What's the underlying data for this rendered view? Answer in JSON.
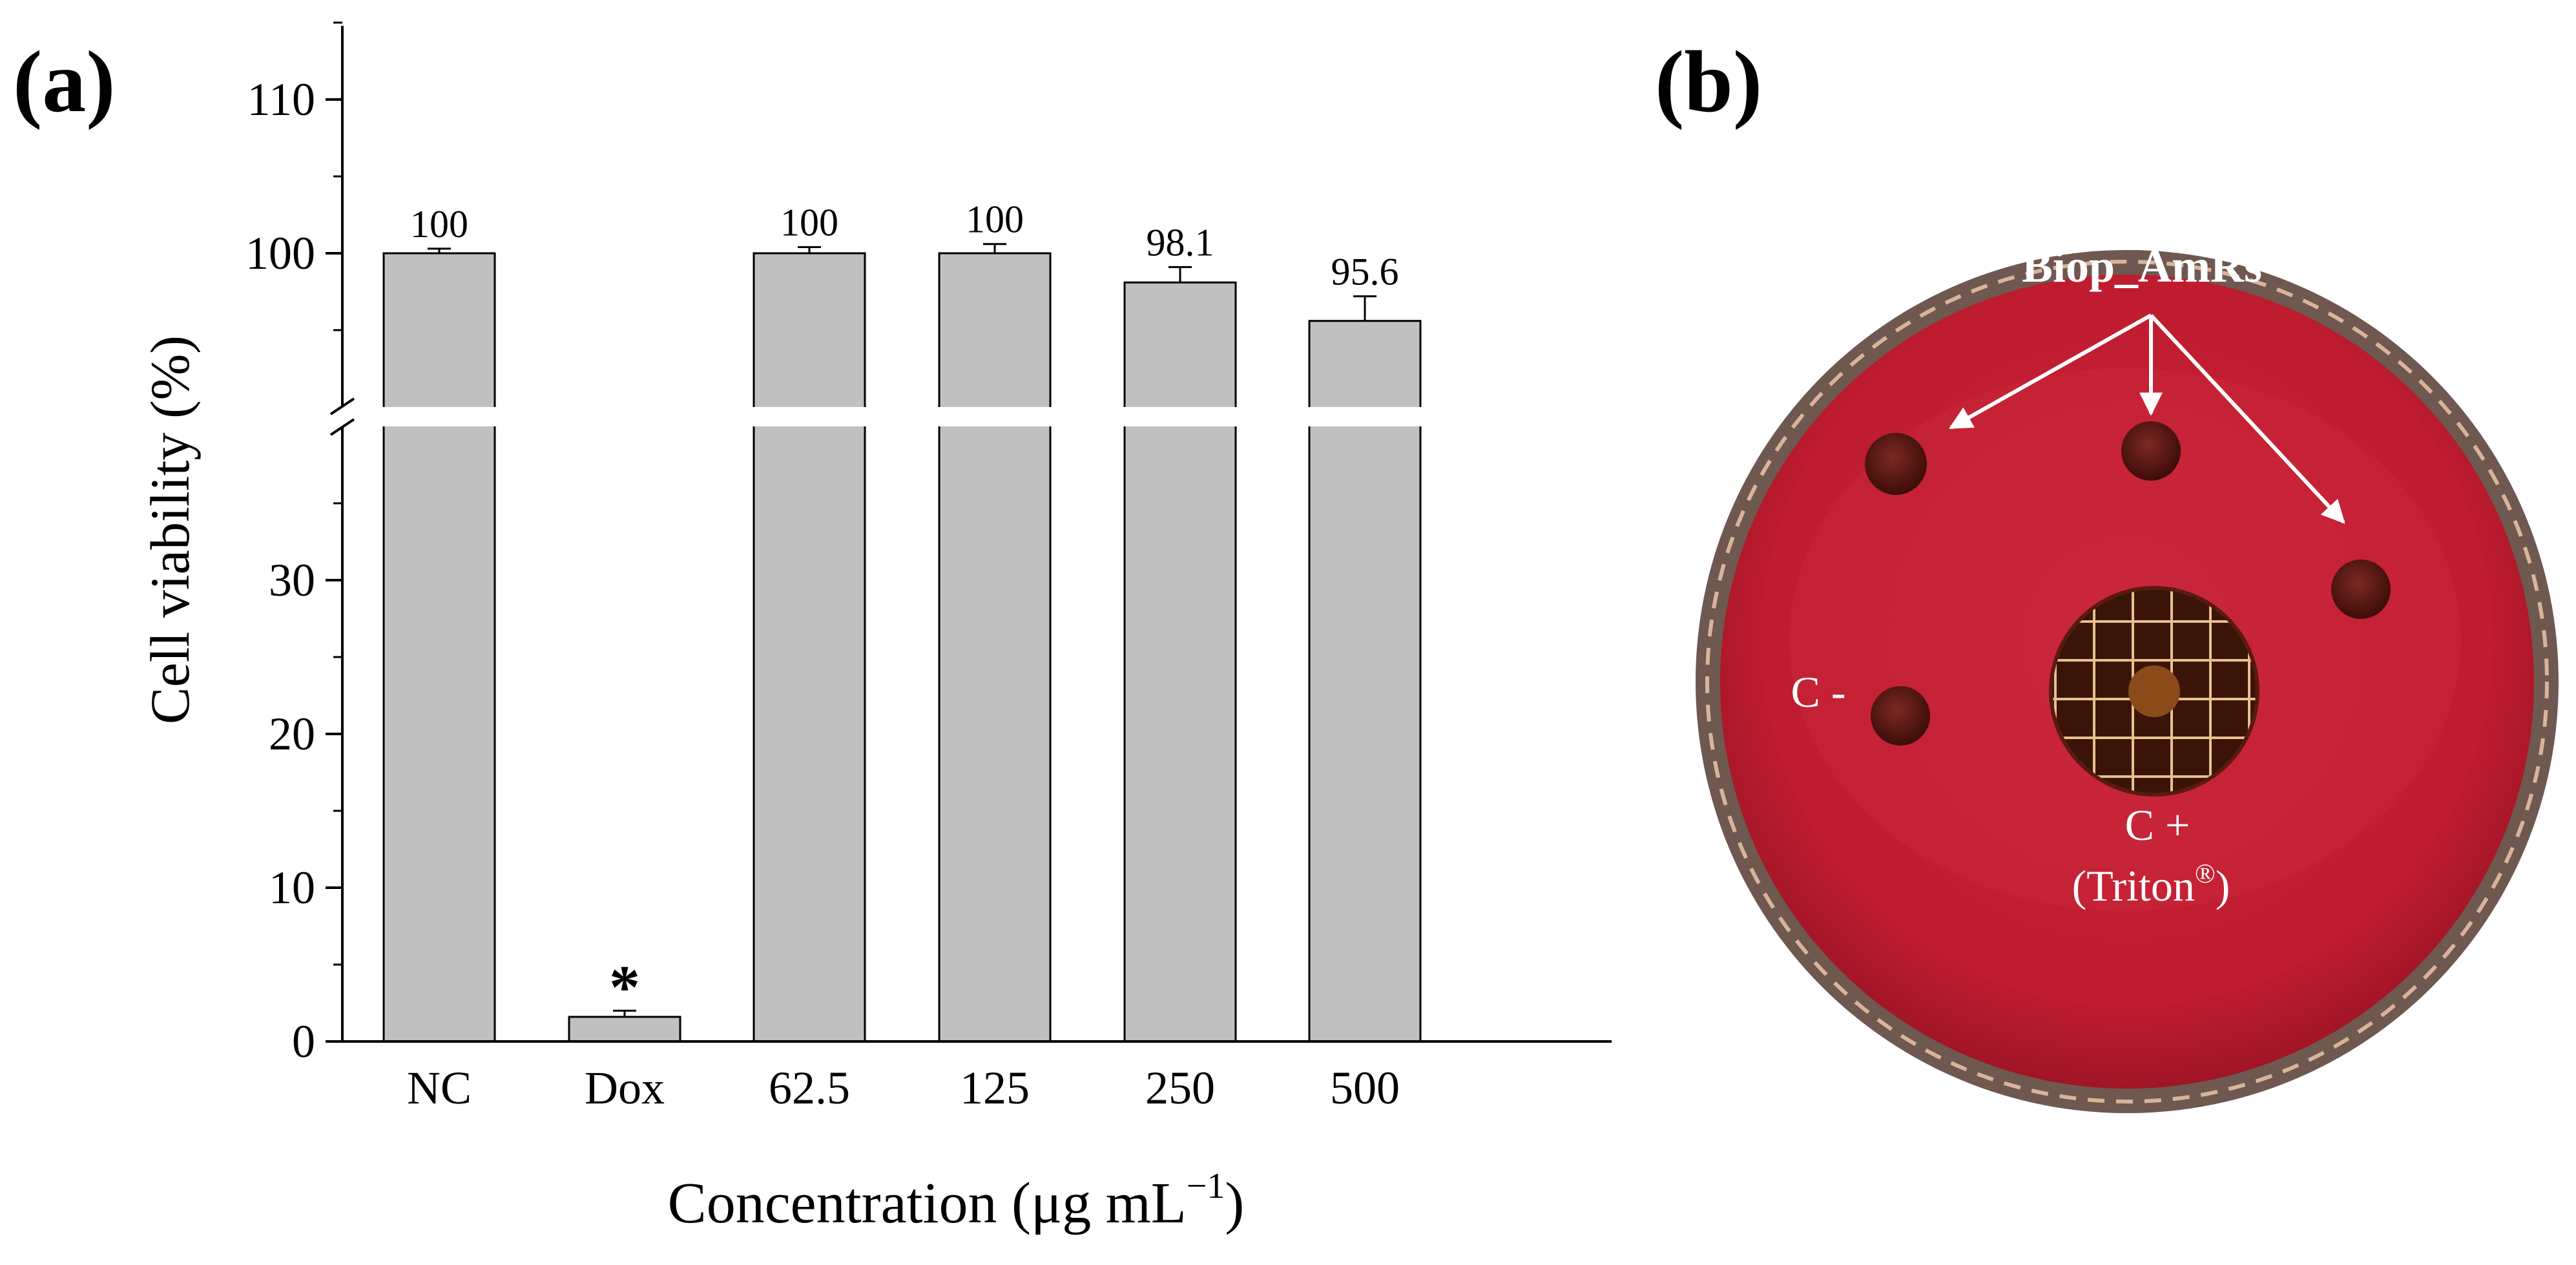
{
  "panel_a": {
    "label": "(a)",
    "chart_data": {
      "type": "bar",
      "categories": [
        "NC",
        "Dox",
        "62.5",
        "125",
        "250",
        "500"
      ],
      "values": [
        100,
        1.6,
        100,
        100,
        98.1,
        95.6
      ],
      "errors": [
        0.3,
        0.4,
        0.4,
        0.6,
        1.0,
        1.6
      ],
      "data_labels": [
        "100",
        "",
        "100",
        "100",
        "98.1",
        "95.6"
      ],
      "significance_marks": [
        "",
        "*",
        "",
        "",
        "",
        ""
      ],
      "xlabel": "Concentration (μg mL",
      "xlabel_sup": "−1",
      "xlabel_close": ")",
      "ylabel": "Cell viability (%)",
      "axis_break": {
        "lower_range": [
          0,
          40
        ],
        "upper_range": [
          90,
          115
        ]
      },
      "yticks_lower": [
        0,
        10,
        20,
        30
      ],
      "yticks_upper": [
        100,
        110
      ],
      "ytick_labels_lower": [
        "0",
        "10",
        "20",
        "30"
      ],
      "ytick_labels_upper": [
        "100",
        "110"
      ],
      "bar_color": "#c0c0c0",
      "grid": false
    }
  },
  "panel_b": {
    "label": "(b)",
    "annotation_group": "Biop_AmRs",
    "negative_control": "C -",
    "positive_control": "C +",
    "positive_control_detail_prefix": "(Triton",
    "positive_control_detail_sup": "®",
    "positive_control_detail_suffix": ")",
    "colors": {
      "agar": "#c31a2e",
      "rim": "#8a6a5a",
      "well": "#5a1410",
      "label": "#ffffff"
    }
  }
}
